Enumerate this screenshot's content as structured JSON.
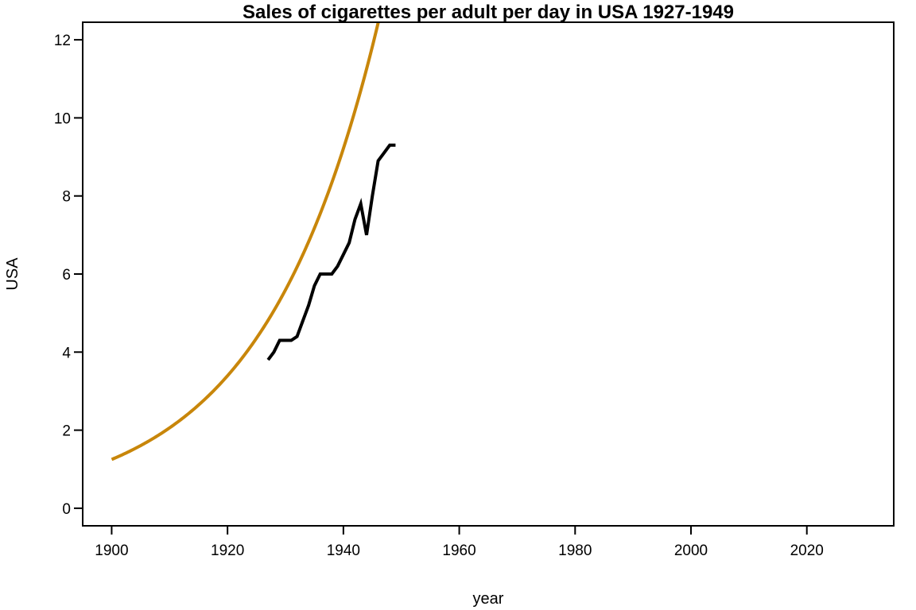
{
  "chart_data": {
    "type": "line",
    "title": "Sales of cigarettes per adult per day in USA 1927-1949",
    "xlabel": "year",
    "ylabel": "USA",
    "xlim": [
      1895,
      2035
    ],
    "ylim": [
      -0.45,
      12.45
    ],
    "x_ticks": [
      "1900",
      "1920",
      "1940",
      "1960",
      "1980",
      "2000",
      "2020"
    ],
    "y_ticks": [
      "0",
      "2",
      "4",
      "6",
      "8",
      "10",
      "12"
    ],
    "grid": false,
    "legend": "none",
    "series": [
      {
        "kind": "observed",
        "color": "#000000",
        "x": [
          1927,
          1928,
          1929,
          1930,
          1931,
          1932,
          1933,
          1934,
          1935,
          1936,
          1937,
          1938,
          1939,
          1940,
          1941,
          1942,
          1943,
          1944,
          1945,
          1946,
          1947,
          1948,
          1949
        ],
        "values": [
          3.8,
          4.0,
          4.3,
          4.3,
          4.3,
          4.4,
          4.8,
          5.2,
          5.7,
          6.0,
          6.0,
          6.0,
          6.2,
          6.5,
          6.8,
          7.4,
          7.8,
          7.0,
          8.0,
          8.9,
          9.1,
          9.3,
          9.3
        ]
      },
      {
        "kind": "fit",
        "color": "#c8860a",
        "curve": "exponential",
        "x_start": 1900,
        "x_end": 1955.4,
        "start_value": 1.25,
        "growth_rate": 0.04994
      }
    ]
  }
}
